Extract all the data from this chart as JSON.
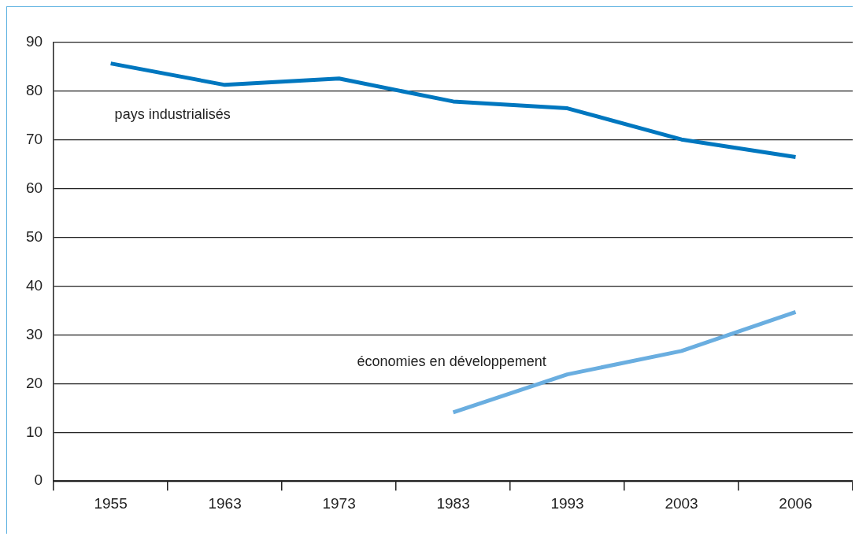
{
  "chart_data": {
    "type": "line",
    "categories": [
      "1955",
      "1963",
      "1973",
      "1983",
      "1993",
      "2003",
      "2006"
    ],
    "series": [
      {
        "name": "pays industrialisés",
        "color": "#0077bf",
        "values": [
          85.7,
          81.3,
          82.6,
          77.9,
          76.5,
          70.1,
          66.5
        ]
      },
      {
        "name": "économies en développement",
        "color": "#6aaee0",
        "values": [
          null,
          null,
          null,
          14.1,
          21.9,
          26.7,
          34.7
        ]
      }
    ],
    "ylim": [
      0,
      90
    ],
    "yticks": [
      0,
      10,
      20,
      30,
      40,
      50,
      60,
      70,
      80,
      90
    ],
    "grid": "y",
    "legend": false,
    "marker": "none",
    "line_style": "solid"
  }
}
